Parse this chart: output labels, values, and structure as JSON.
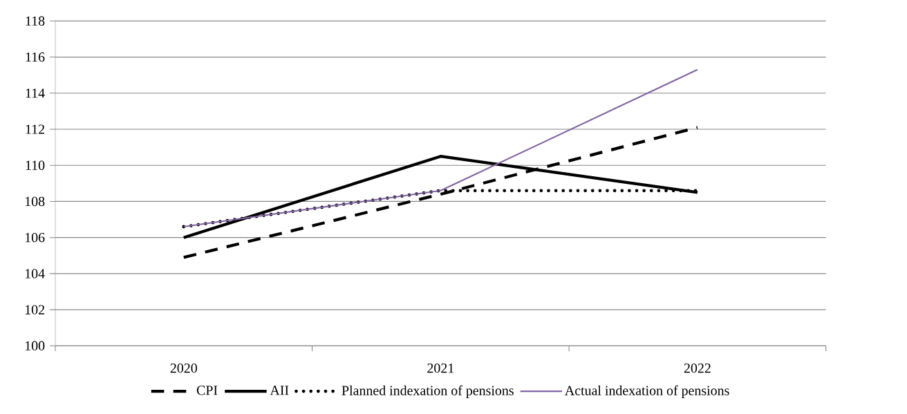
{
  "chart_data": {
    "type": "line",
    "categories": [
      "2020",
      "2021",
      "2022"
    ],
    "series": [
      {
        "name": "CPI",
        "color": "#000000",
        "line_style": "dashed",
        "values": [
          104.9,
          108.4,
          112.1
        ]
      },
      {
        "name": "AII",
        "color": "#000000",
        "line_style": "solid",
        "values": [
          106.0,
          110.5,
          108.5
        ]
      },
      {
        "name": "Planned indexation of pensions",
        "color": "#000000",
        "line_style": "dotted",
        "values": [
          106.6,
          108.6,
          108.6
        ]
      },
      {
        "name": "Actual indexation of pensions",
        "color": "#8064a2",
        "line_style": "solid",
        "values": [
          106.6,
          108.6,
          115.3
        ]
      }
    ],
    "ylim": [
      100,
      118
    ],
    "yticks": [
      100,
      102,
      104,
      106,
      108,
      110,
      112,
      114,
      116,
      118
    ],
    "grid": "y",
    "legend": "bottom"
  }
}
